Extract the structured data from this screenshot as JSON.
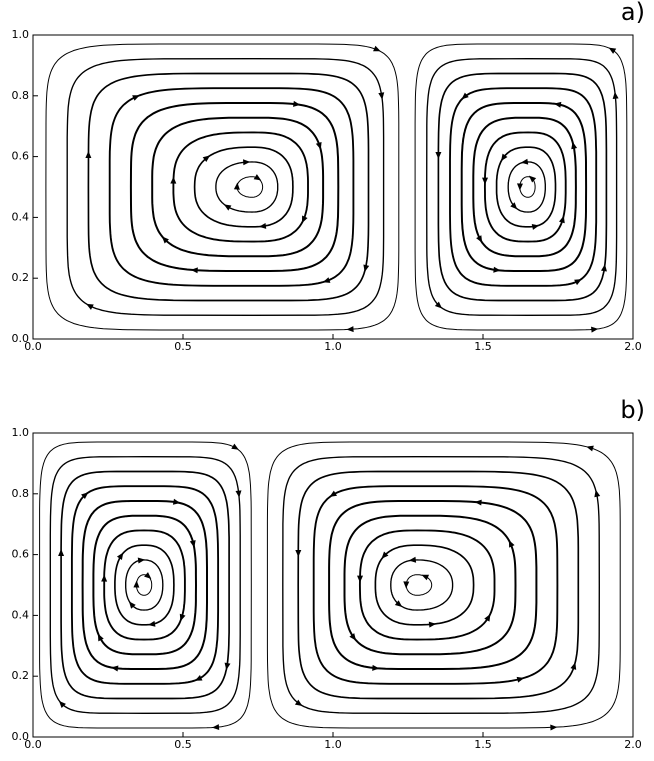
{
  "chart_data": [
    {
      "type": "streamline",
      "panel_label": "a)",
      "xlim": [
        0,
        2
      ],
      "ylim": [
        0,
        1
      ],
      "xticks": [
        {
          "value": 0,
          "label": "0.0"
        },
        {
          "value": 0.5,
          "label": "0.5"
        },
        {
          "value": 1,
          "label": "1.0"
        },
        {
          "value": 1.5,
          "label": "1.5"
        },
        {
          "value": 2,
          "label": "2.0"
        }
      ],
      "yticks": [
        {
          "value": 0,
          "label": "0.0"
        },
        {
          "value": 0.2,
          "label": "0.2"
        },
        {
          "value": 0.4,
          "label": "0.4"
        },
        {
          "value": 0.6,
          "label": "0.6"
        },
        {
          "value": 0.8,
          "label": "0.8"
        },
        {
          "value": 1,
          "label": "1.0"
        }
      ],
      "color": "#000000",
      "vortices": [
        {
          "x": 0.73,
          "y": 0.5,
          "xrange": [
            0,
            1.25
          ],
          "direction": "clockwise"
        },
        {
          "x": 1.65,
          "y": 0.5,
          "xrange": [
            1.25,
            2
          ],
          "direction": "counterclockwise"
        }
      ]
    },
    {
      "type": "streamline",
      "panel_label": "b)",
      "xlim": [
        0,
        2
      ],
      "ylim": [
        0,
        1
      ],
      "xticks": [
        {
          "value": 0,
          "label": "0.0"
        },
        {
          "value": 0.5,
          "label": "0.5"
        },
        {
          "value": 1,
          "label": "1.0"
        },
        {
          "value": 1.5,
          "label": "1.5"
        },
        {
          "value": 2,
          "label": "2.0"
        }
      ],
      "yticks": [
        {
          "value": 0,
          "label": "0.0"
        },
        {
          "value": 0.2,
          "label": "0.2"
        },
        {
          "value": 0.4,
          "label": "0.4"
        },
        {
          "value": 0.6,
          "label": "0.6"
        },
        {
          "value": 0.8,
          "label": "0.8"
        },
        {
          "value": 1,
          "label": "1.0"
        }
      ],
      "color": "#000000",
      "vortices": [
        {
          "x": 0.37,
          "y": 0.5,
          "xrange": [
            0,
            0.75
          ],
          "direction": "clockwise"
        },
        {
          "x": 1.28,
          "y": 0.5,
          "xrange": [
            0.75,
            2
          ],
          "direction": "counterclockwise"
        }
      ]
    }
  ]
}
